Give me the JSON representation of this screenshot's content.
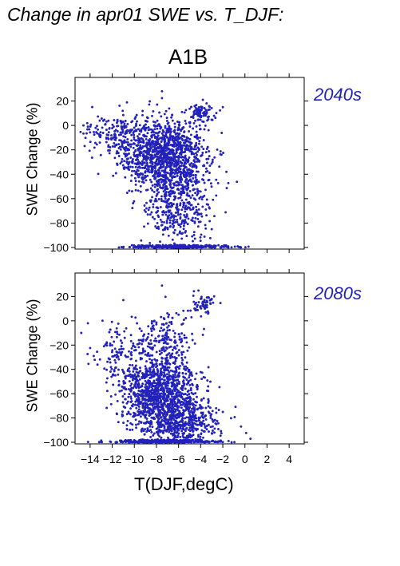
{
  "page": {
    "title": "Change in apr01 SWE vs. T_DJF:",
    "scenario": "A1B",
    "xlabel": "T(DJF,degC)",
    "accent_color": "#2222bb"
  },
  "chart_data": [
    {
      "type": "scatter",
      "panel_label": "2040s",
      "ylabel": "SWE Change (%)",
      "xlim": [
        -15,
        5
      ],
      "ylim": [
        -100,
        38
      ],
      "xticks": [
        -14,
        -12,
        -10,
        -8,
        -6,
        -4,
        -2,
        0,
        2,
        4
      ],
      "yticks": [
        20,
        0,
        -20,
        -40,
        -60,
        -80,
        -100
      ],
      "x_tick_labels_shown": false,
      "grid": false,
      "marker_color": "#2222bb",
      "point_clouds": [
        {
          "x_mean": -7.5,
          "x_sd": 2.0,
          "y_mean": -22,
          "y_sd": 14,
          "n": 1000
        },
        {
          "x_mean": -6.2,
          "x_sd": 1.6,
          "y_mean": -55,
          "y_sd": 22,
          "n": 650
        },
        {
          "x_mean": -11.5,
          "x_sd": 1.6,
          "y_mean": -6,
          "y_sd": 7,
          "n": 150
        },
        {
          "x_mean": -4.0,
          "x_sd": 0.6,
          "y_mean": 10,
          "y_sd": 4,
          "n": 90
        },
        {
          "x_mean": -6.0,
          "x_sd": 2.3,
          "y_mean": -100,
          "y_sd": 0.4,
          "n": 320
        }
      ],
      "points": [
        {
          "x": -14.6,
          "y": 0
        },
        {
          "x": -14.2,
          "y": -1
        },
        {
          "x": -13.5,
          "y": -2
        },
        {
          "x": -7.5,
          "y": 28
        },
        {
          "x": -3.8,
          "y": 21
        },
        {
          "x": -2.0,
          "y": 15
        },
        {
          "x": -1.5,
          "y": -100
        },
        {
          "x": -3.0,
          "y": -85
        }
      ]
    },
    {
      "type": "scatter",
      "panel_label": "2080s",
      "ylabel": "SWE Change (%)",
      "xlim": [
        -15,
        5
      ],
      "ylim": [
        -100,
        38
      ],
      "xticks": [
        -14,
        -12,
        -10,
        -8,
        -6,
        -4,
        -2,
        0,
        2,
        4
      ],
      "yticks": [
        20,
        0,
        -20,
        -40,
        -60,
        -80,
        -100
      ],
      "x_tick_labels_shown": true,
      "grid": false,
      "marker_color": "#2222bb",
      "point_clouds": [
        {
          "x_mean": -7.8,
          "x_sd": 1.7,
          "y_mean": -58,
          "y_sd": 17,
          "n": 1050
        },
        {
          "x_mean": -6.0,
          "x_sd": 1.8,
          "y_mean": -82,
          "y_sd": 11,
          "n": 550
        },
        {
          "x_mean": -11.0,
          "x_sd": 1.4,
          "y_mean": -28,
          "y_sd": 14,
          "n": 120
        },
        {
          "x_mean": -7.0,
          "x_sd": 1.5,
          "y_mean": -12,
          "y_sd": 10,
          "n": 130
        },
        {
          "x_mean": -3.8,
          "x_sd": 0.6,
          "y_mean": 14,
          "y_sd": 4,
          "n": 60
        },
        {
          "x_mean": -7.2,
          "x_sd": 2.3,
          "y_mean": -100,
          "y_sd": 0.4,
          "n": 350
        }
      ],
      "points": [
        {
          "x": -14.8,
          "y": -10
        },
        {
          "x": -14.2,
          "y": -2
        },
        {
          "x": -7.5,
          "y": 29
        },
        {
          "x": -6.0,
          "y": 5
        },
        {
          "x": -4.0,
          "y": 18
        },
        {
          "x": -3.0,
          "y": 18
        },
        {
          "x": -2.0,
          "y": -75
        },
        {
          "x": -1.2,
          "y": -100
        }
      ]
    }
  ],
  "tick_label_x": [
    "−14",
    "−12",
    "−10",
    "−8",
    "−6",
    "−4",
    "−2",
    "0",
    "2",
    "4"
  ],
  "tick_label_y": [
    "20",
    "0",
    "−20",
    "−40",
    "−60",
    "−80",
    "−100"
  ]
}
